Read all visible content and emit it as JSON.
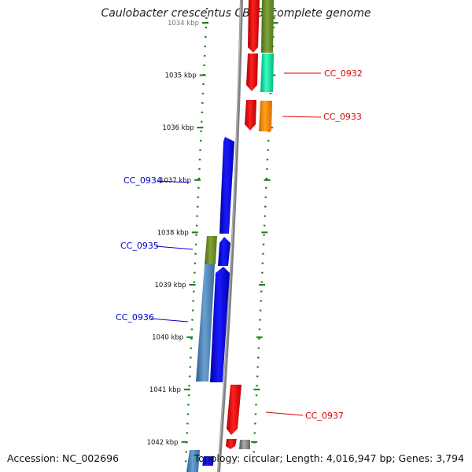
{
  "title": "Caulobacter crescentus CB15, complete genome",
  "accession_text": "Accession: NC_002696",
  "topology_text": "Topology: circular; Length: 4,016,947 bp; Genes: 3,794",
  "ticks": [
    {
      "label": "1034 kbp",
      "pos": 1034
    },
    {
      "label": "1035 kbp",
      "pos": 1035
    },
    {
      "label": "1036 kbp",
      "pos": 1036
    },
    {
      "label": "1037 kbp",
      "pos": 1037
    },
    {
      "label": "1038 kbp",
      "pos": 1038
    },
    {
      "label": "1039 kbp",
      "pos": 1039
    },
    {
      "label": "1040 kbp",
      "pos": 1040
    },
    {
      "label": "1041 kbp",
      "pos": 1041
    },
    {
      "label": "1042 kbp",
      "pos": 1042
    }
  ],
  "gene_labels": {
    "cc0932": "CC_0932",
    "cc0933": "CC_0933",
    "cc0934": "CC_0934",
    "cc0935": "CC_0935",
    "cc0936": "CC_0936",
    "cc0937": "CC_0937"
  },
  "colors": {
    "forward_label": "#dd0000",
    "reverse_label": "#0000cc",
    "red": "#ee0000",
    "blue": "#0000ee",
    "olive": "#6b8e23",
    "green": "#00c896",
    "orange": "#ff8c00",
    "steelblue": "#4682b4",
    "gray": "#808080",
    "tick": "#1a7a1a",
    "backbone": "#888888"
  }
}
